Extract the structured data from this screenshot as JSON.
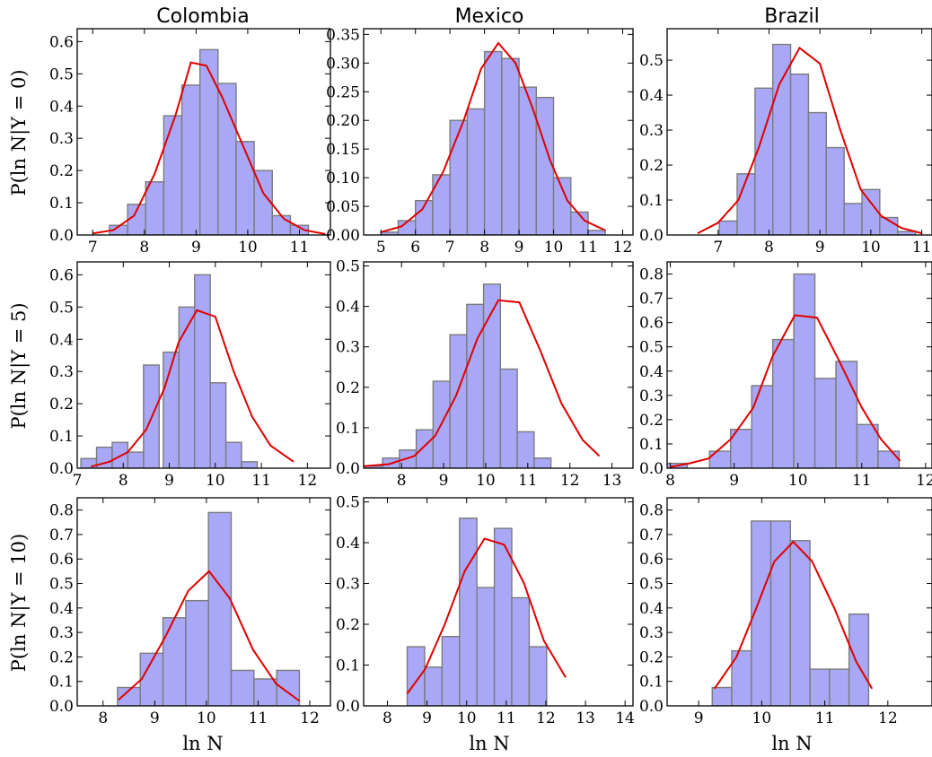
{
  "column_titles": [
    "Colombia",
    "Mexico",
    "Brazil"
  ],
  "row_ylabels": [
    "P(ln N|Y = 0)",
    "P(ln N|Y = 5)",
    "P(ln N|Y = 10)"
  ],
  "xlabel": "ln N",
  "colors": {
    "bar_fill": "#a8a8f6",
    "bar_edge": "#7b7b7b",
    "curve": "#e00000"
  },
  "chart_data": [
    {
      "type": "bar",
      "country": "Colombia",
      "condition": "Y = 0",
      "xlim": [
        6.7,
        11.6
      ],
      "ylim": [
        0,
        0.64
      ],
      "xticks": [
        7,
        8,
        9,
        10,
        11
      ],
      "yticks": [
        0.0,
        0.1,
        0.2,
        0.3,
        0.4,
        0.5,
        0.6
      ],
      "ytick_labels": [
        "0.0",
        "0.1",
        "0.2",
        "0.3",
        "0.4",
        "0.5",
        "0.6"
      ],
      "bar_width": 0.35,
      "bars_x": [
        7.5,
        7.85,
        8.2,
        8.55,
        8.9,
        9.25,
        9.6,
        9.95,
        10.3,
        10.65,
        11.0
      ],
      "bars_y": [
        0.03,
        0.095,
        0.165,
        0.37,
        0.465,
        0.575,
        0.47,
        0.29,
        0.2,
        0.06,
        0.03
      ],
      "curve_x": [
        7.0,
        7.4,
        7.8,
        8.2,
        8.6,
        8.9,
        9.2,
        9.5,
        9.9,
        10.3,
        10.7,
        11.1,
        11.5
      ],
      "curve_y": [
        0.005,
        0.015,
        0.06,
        0.19,
        0.37,
        0.535,
        0.525,
        0.43,
        0.28,
        0.13,
        0.05,
        0.015,
        0.003
      ]
    },
    {
      "type": "bar",
      "country": "Mexico",
      "condition": "Y = 0",
      "xlim": [
        4.5,
        12.3
      ],
      "ylim": [
        0,
        0.36
      ],
      "xticks": [
        5,
        6,
        7,
        8,
        9,
        10,
        11,
        12
      ],
      "yticks": [
        0.0,
        0.05,
        0.1,
        0.15,
        0.2,
        0.25,
        0.3,
        0.35
      ],
      "ytick_labels": [
        "0.00",
        "0.05",
        "0.10",
        "0.15",
        "0.20",
        "0.25",
        "0.30",
        "0.35"
      ],
      "bar_width": 0.5,
      "bars_x": [
        5.25,
        5.75,
        6.25,
        6.75,
        7.25,
        7.75,
        8.25,
        8.75,
        9.25,
        9.75,
        10.25,
        10.75,
        11.25
      ],
      "bars_y": [
        0.005,
        0.025,
        0.06,
        0.105,
        0.2,
        0.22,
        0.32,
        0.308,
        0.258,
        0.24,
        0.1,
        0.04,
        0.008
      ],
      "curve_x": [
        5.0,
        5.6,
        6.2,
        6.8,
        7.4,
        7.9,
        8.4,
        8.9,
        9.4,
        9.9,
        10.4,
        10.9,
        11.5
      ],
      "curve_y": [
        0.005,
        0.015,
        0.045,
        0.11,
        0.2,
        0.29,
        0.335,
        0.3,
        0.22,
        0.13,
        0.06,
        0.025,
        0.008
      ]
    },
    {
      "type": "bar",
      "country": "Brazil",
      "condition": "Y = 0",
      "xlim": [
        6.0,
        11.2
      ],
      "ylim": [
        0,
        0.59
      ],
      "xticks": [
        7,
        8,
        9,
        10,
        11
      ],
      "yticks": [
        0.0,
        0.1,
        0.2,
        0.3,
        0.4,
        0.5
      ],
      "ytick_labels": [
        "0.0",
        "0.1",
        "0.2",
        "0.3",
        "0.4",
        "0.5"
      ],
      "bar_width": 0.35,
      "bars_x": [
        7.2,
        7.55,
        7.9,
        8.25,
        8.6,
        8.95,
        9.3,
        9.65,
        10.0,
        10.35,
        10.7
      ],
      "bars_y": [
        0.04,
        0.175,
        0.42,
        0.545,
        0.46,
        0.35,
        0.25,
        0.09,
        0.13,
        0.05,
        0.01
      ],
      "curve_x": [
        6.6,
        7.0,
        7.4,
        7.8,
        8.2,
        8.6,
        9.0,
        9.4,
        9.8,
        10.2,
        10.6,
        11.0
      ],
      "curve_y": [
        0.005,
        0.035,
        0.1,
        0.25,
        0.43,
        0.535,
        0.49,
        0.3,
        0.13,
        0.055,
        0.02,
        0.005
      ]
    },
    {
      "type": "bar",
      "country": "Colombia",
      "condition": "Y = 5",
      "xlim": [
        7.0,
        12.5
      ],
      "ylim": [
        0,
        0.64
      ],
      "xticks": [
        7,
        8,
        9,
        10,
        11,
        12
      ],
      "yticks": [
        0.0,
        0.1,
        0.2,
        0.3,
        0.4,
        0.5,
        0.6
      ],
      "ytick_labels": [
        "0.0",
        "0.1",
        "0.2",
        "0.3",
        "0.4",
        "0.5",
        "0.6"
      ],
      "bar_width": 0.34,
      "bars_x": [
        7.25,
        7.59,
        7.93,
        8.27,
        8.61,
        9.04,
        9.38,
        9.72,
        10.06,
        10.4,
        10.74,
        11.08,
        11.42
      ],
      "bars_y": [
        0.03,
        0.065,
        0.08,
        0.05,
        0.32,
        0.36,
        0.5,
        0.6,
        0.265,
        0.08,
        0.02,
        0.0,
        0.0
      ],
      "curve_x": [
        7.3,
        7.7,
        8.1,
        8.5,
        8.9,
        9.2,
        9.6,
        10.0,
        10.4,
        10.8,
        11.2,
        11.7
      ],
      "curve_y": [
        0.005,
        0.02,
        0.05,
        0.12,
        0.25,
        0.39,
        0.49,
        0.47,
        0.3,
        0.16,
        0.07,
        0.02
      ]
    },
    {
      "type": "bar",
      "country": "Mexico",
      "condition": "Y = 5",
      "xlim": [
        7.1,
        13.5
      ],
      "ylim": [
        0,
        0.51
      ],
      "xticks": [
        8,
        9,
        10,
        11,
        12,
        13
      ],
      "yticks": [
        0.0,
        0.1,
        0.2,
        0.3,
        0.4,
        0.5
      ],
      "ytick_labels": [
        "0.0",
        "0.1",
        "0.2",
        "0.3",
        "0.4",
        "0.5"
      ],
      "bar_width": 0.4,
      "bars_x": [
        7.35,
        7.75,
        8.15,
        8.55,
        8.95,
        9.35,
        9.75,
        10.15,
        10.55,
        10.95,
        11.35,
        11.75,
        12.15
      ],
      "bars_y": [
        0.005,
        0.025,
        0.045,
        0.095,
        0.215,
        0.33,
        0.405,
        0.455,
        0.245,
        0.09,
        0.025,
        0.0,
        0.0
      ],
      "curve_x": [
        7.1,
        7.7,
        8.3,
        8.8,
        9.3,
        9.8,
        10.3,
        10.8,
        11.3,
        11.8,
        12.3,
        12.7
      ],
      "curve_y": [
        0.005,
        0.01,
        0.03,
        0.08,
        0.18,
        0.32,
        0.415,
        0.41,
        0.29,
        0.16,
        0.07,
        0.03
      ]
    },
    {
      "type": "bar",
      "country": "Brazil",
      "condition": "Y = 5",
      "xlim": [
        7.95,
        12.1
      ],
      "ylim": [
        0,
        0.85
      ],
      "xticks": [
        8,
        9,
        10,
        11,
        12
      ],
      "yticks": [
        0.0,
        0.1,
        0.2,
        0.3,
        0.4,
        0.5,
        0.6,
        0.7,
        0.8
      ],
      "ytick_labels": [
        "0.0",
        "0.1",
        "0.2",
        "0.3",
        "0.4",
        "0.5",
        "0.6",
        "0.7",
        "0.8"
      ],
      "bar_width": 0.33,
      "bars_x": [
        8.1,
        8.45,
        8.78,
        9.11,
        9.44,
        9.77,
        10.1,
        10.43,
        10.76,
        11.09,
        11.42
      ],
      "bars_y": [
        0.02,
        0.0,
        0.07,
        0.16,
        0.34,
        0.53,
        0.8,
        0.37,
        0.44,
        0.18,
        0.07
      ],
      "curve_x": [
        8.0,
        8.3,
        8.6,
        8.95,
        9.3,
        9.6,
        9.95,
        10.3,
        10.65,
        11.0,
        11.3,
        11.6
      ],
      "curve_y": [
        0.005,
        0.02,
        0.04,
        0.12,
        0.25,
        0.46,
        0.63,
        0.62,
        0.44,
        0.25,
        0.12,
        0.03
      ]
    },
    {
      "type": "bar",
      "country": "Colombia",
      "condition": "Y = 10",
      "xlim": [
        7.5,
        12.4
      ],
      "ylim": [
        0,
        0.85
      ],
      "xticks": [
        8,
        9,
        10,
        11,
        12
      ],
      "yticks": [
        0.0,
        0.1,
        0.2,
        0.3,
        0.4,
        0.5,
        0.6,
        0.7,
        0.8
      ],
      "ytick_labels": [
        "0.0",
        "0.1",
        "0.2",
        "0.3",
        "0.4",
        "0.5",
        "0.6",
        "0.7",
        "0.8"
      ],
      "bar_width": 0.44,
      "bars_x": [
        8.5,
        8.94,
        9.38,
        9.82,
        10.26,
        10.7,
        11.14,
        11.58
      ],
      "bars_y": [
        0.075,
        0.215,
        0.36,
        0.43,
        0.79,
        0.145,
        0.11,
        0.145
      ],
      "curve_x": [
        8.3,
        8.75,
        9.2,
        9.65,
        10.05,
        10.45,
        10.9,
        11.35,
        11.8
      ],
      "curve_y": [
        0.025,
        0.11,
        0.28,
        0.47,
        0.55,
        0.44,
        0.23,
        0.09,
        0.02
      ]
    },
    {
      "type": "bar",
      "country": "Mexico",
      "condition": "Y = 10",
      "xlim": [
        7.4,
        14.2
      ],
      "ylim": [
        0,
        0.51
      ],
      "xticks": [
        8,
        9,
        10,
        11,
        12,
        13,
        14
      ],
      "yticks": [
        0.0,
        0.1,
        0.2,
        0.3,
        0.4,
        0.5
      ],
      "ytick_labels": [
        "0.0",
        "0.1",
        "0.2",
        "0.3",
        "0.4",
        "0.5"
      ],
      "bar_width": 0.44,
      "bars_x": [
        8.72,
        9.16,
        9.6,
        10.04,
        10.48,
        10.92,
        11.36,
        11.8,
        12.24
      ],
      "bars_y": [
        0.145,
        0.095,
        0.17,
        0.46,
        0.29,
        0.435,
        0.265,
        0.145,
        0.0
      ],
      "curve_x": [
        8.5,
        8.95,
        9.45,
        9.95,
        10.45,
        10.95,
        11.45,
        11.95,
        12.5
      ],
      "curve_y": [
        0.03,
        0.09,
        0.2,
        0.33,
        0.41,
        0.395,
        0.3,
        0.16,
        0.07
      ]
    },
    {
      "type": "bar",
      "country": "Brazil",
      "condition": "Y = 10",
      "xlim": [
        8.5,
        12.7
      ],
      "ylim": [
        0,
        0.85
      ],
      "xticks": [
        9,
        10,
        11,
        12
      ],
      "yticks": [
        0.0,
        0.1,
        0.2,
        0.3,
        0.4,
        0.5,
        0.6,
        0.7,
        0.8
      ],
      "ytick_labels": [
        "0.0",
        "0.1",
        "0.2",
        "0.3",
        "0.4",
        "0.5",
        "0.6",
        "0.7",
        "0.8"
      ],
      "bar_width": 0.31,
      "bars_x": [
        9.37,
        9.68,
        9.99,
        10.3,
        10.61,
        10.92,
        11.23,
        11.54
      ],
      "bars_y": [
        0.075,
        0.225,
        0.755,
        0.755,
        0.675,
        0.15,
        0.15,
        0.375
      ],
      "curve_x": [
        9.25,
        9.6,
        9.9,
        10.2,
        10.5,
        10.8,
        11.15,
        11.5,
        11.75
      ],
      "curve_y": [
        0.07,
        0.2,
        0.39,
        0.59,
        0.67,
        0.59,
        0.4,
        0.18,
        0.07
      ]
    }
  ]
}
